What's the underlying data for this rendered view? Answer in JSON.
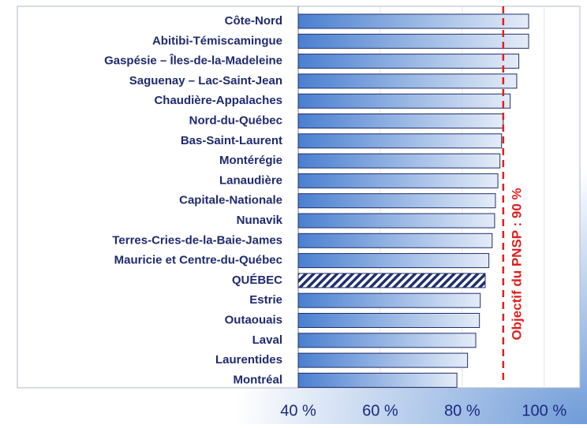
{
  "chart_data": {
    "type": "bar",
    "orientation": "horizontal",
    "categories": [
      "Côte-Nord",
      "Abitibi-Témiscamingue",
      "Gaspésie – Îles-de-la-Madeleine",
      "Saguenay – Lac-Saint-Jean",
      "Chaudière-Appalaches",
      "Nord-du-Québec",
      "Bas-Saint-Laurent",
      "Montérégie",
      "Lanaudière",
      "Capitale-Nationale",
      "Nunavik",
      "Terres-Cries-de-la-Baie-James",
      "Mauricie et Centre-du-Québec",
      "QUÉBEC",
      "Estrie",
      "Outaouais",
      "Laval",
      "Laurentides",
      "Montréal"
    ],
    "values": [
      96.2,
      96.2,
      93.8,
      93.3,
      91.7,
      90.0,
      89.6,
      89.2,
      88.7,
      88.1,
      87.9,
      87.3,
      86.5,
      85.6,
      84.4,
      84.2,
      83.3,
      81.3,
      78.7
    ],
    "color": "#4a7fd0",
    "hatched_index": 13,
    "xlim": [
      40,
      108.7
    ],
    "xticks": [
      {
        "value": 40,
        "label": "40 %"
      },
      {
        "value": 60,
        "label": "60 %"
      },
      {
        "value": 80,
        "label": "80 %"
      },
      {
        "value": 100,
        "label": "100 %"
      }
    ],
    "grid": true,
    "reference_line": {
      "value": 90,
      "label": "Objectif du PNSP : 90 %",
      "color": "#e02020"
    }
  }
}
